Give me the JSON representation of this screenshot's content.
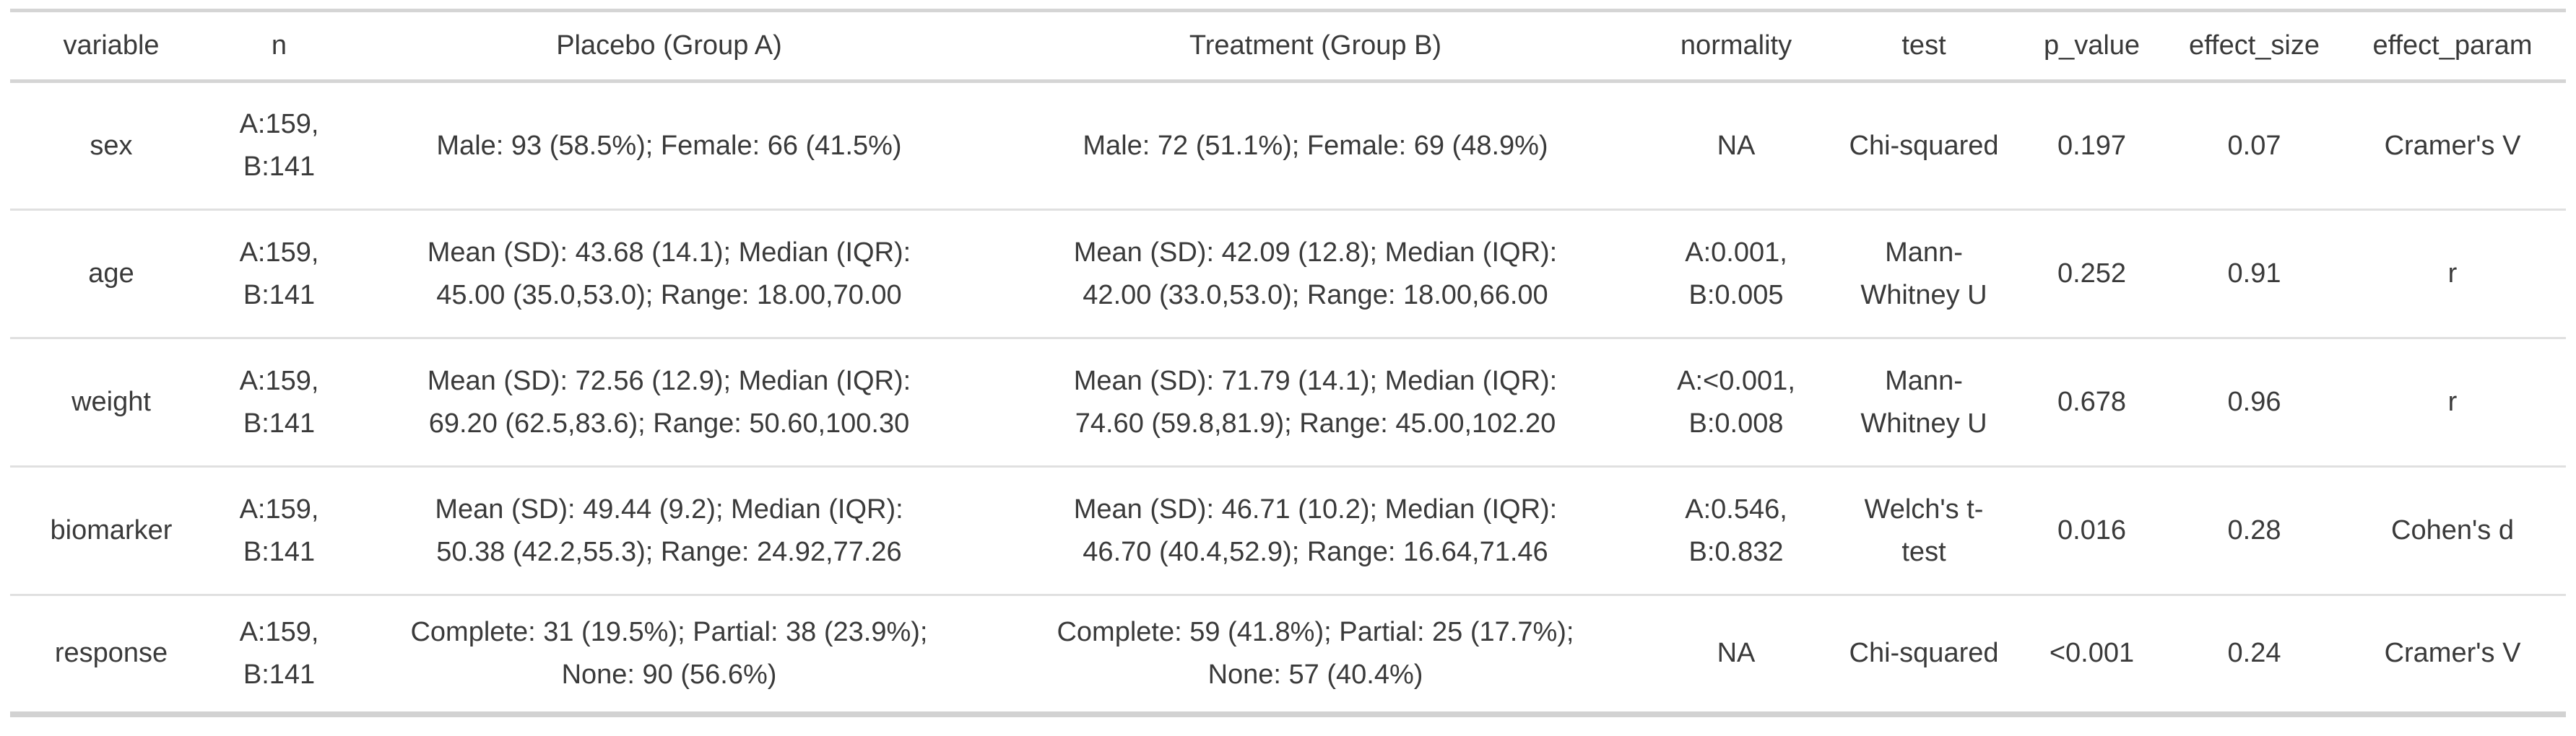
{
  "chart_data": {
    "type": "table",
    "columns": [
      "variable",
      "n",
      "Placebo (Group A)",
      "Treatment (Group B)",
      "normality",
      "test",
      "p_value",
      "effect_size",
      "effect_param"
    ],
    "rows": [
      [
        "sex",
        "A:159, B:141",
        "Male: 93 (58.5%); Female: 66 (41.5%)",
        "Male: 72 (51.1%); Female: 69 (48.9%)",
        "NA",
        "Chi-squared",
        "0.197",
        "0.07",
        "Cramer's V"
      ],
      [
        "age",
        "A:159, B:141",
        "Mean (SD): 43.68 (14.1); Median (IQR): 45.00 (35.0,53.0); Range: 18.00,70.00",
        "Mean (SD): 42.09 (12.8); Median (IQR): 42.00 (33.0,53.0); Range: 18.00,66.00",
        "A:0.001, B:0.005",
        "Mann-Whitney U",
        "0.252",
        "0.91",
        "r"
      ],
      [
        "weight",
        "A:159, B:141",
        "Mean (SD): 72.56 (12.9); Median (IQR): 69.20 (62.5,83.6); Range: 50.60,100.30",
        "Mean (SD): 71.79 (14.1); Median (IQR): 74.60 (59.8,81.9); Range: 45.00,102.20",
        "A:<0.001, B:0.008",
        "Mann-Whitney U",
        "0.678",
        "0.96",
        "r"
      ],
      [
        "biomarker",
        "A:159, B:141",
        "Mean (SD): 49.44 (9.2); Median (IQR): 50.38 (42.2,55.3); Range: 24.92,77.26",
        "Mean (SD): 46.71 (10.2); Median (IQR): 46.70 (40.4,52.9); Range: 16.64,71.46",
        "A:0.546, B:0.832",
        "Welch's t-test",
        "0.016",
        "0.28",
        "Cohen's d"
      ],
      [
        "response",
        "A:159, B:141",
        "Complete: 31 (19.5%); Partial: 38 (23.9%); None: 90 (56.6%)",
        "Complete: 59 (41.8%); Partial: 25 (17.7%); None: 57 (40.4%)",
        "NA",
        "Chi-squared",
        "<0.001",
        "0.24",
        "Cramer's V"
      ]
    ],
    "layout": {
      "grid": "horizontal row separators only",
      "header_border": "top and bottom gray rules",
      "alignment": "center"
    }
  },
  "colors": {
    "background": "#ffffff",
    "text": "#3a3a3a",
    "border_strong": "#d5d5d5",
    "border_light": "#e0e0e0"
  }
}
